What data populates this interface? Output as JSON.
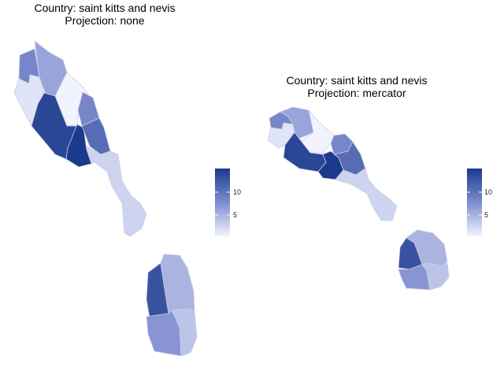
{
  "panels": [
    {
      "title_line1": "Country: saint kitts and nevis",
      "title_line2": "Projection: none"
    },
    {
      "title_line1": "Country: saint kitts and nevis",
      "title_line2": "Projection: mercator"
    }
  ],
  "legend": {
    "ticks": [
      "10",
      "5"
    ],
    "tick_values": [
      10,
      5
    ],
    "range": [
      1,
      14
    ],
    "color_low": "#f1f4ff",
    "color_high": "#1a3a8c"
  },
  "regions": [
    {
      "id": "kitts-northwest",
      "value": 8
    },
    {
      "id": "kitts-north",
      "value": 6
    },
    {
      "id": "kitts-west",
      "value": 2
    },
    {
      "id": "kitts-north-central",
      "value": 1
    },
    {
      "id": "kitts-east",
      "value": 8
    },
    {
      "id": "kitts-southwest",
      "value": 13
    },
    {
      "id": "kitts-south-central",
      "value": 14
    },
    {
      "id": "kitts-southeast",
      "value": 10
    },
    {
      "id": "kitts-peninsula",
      "value": 3
    },
    {
      "id": "nevis-west",
      "value": 12
    },
    {
      "id": "nevis-east",
      "value": 5
    },
    {
      "id": "nevis-southwest",
      "value": 7
    },
    {
      "id": "nevis-southeast",
      "value": 4
    }
  ]
}
